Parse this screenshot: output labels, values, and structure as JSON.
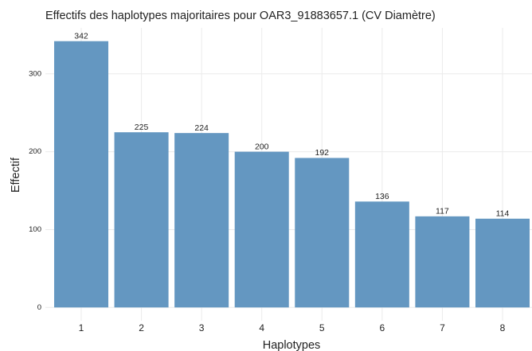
{
  "chart_data": {
    "type": "bar",
    "title": "Effectifs des haplotypes majoritaires pour OAR3_91883657.1 (CV Diamètre)",
    "x_label": "Haplotypes",
    "y_label": "Effectif",
    "categories": [
      "1",
      "2",
      "3",
      "4",
      "5",
      "6",
      "7",
      "8"
    ],
    "values": [
      342,
      225,
      224,
      200,
      192,
      136,
      117,
      114
    ],
    "color": "#6497c1",
    "ylim": [
      -17.1,
      359.1
    ],
    "yticks": [
      0,
      100,
      200,
      300
    ],
    "grid": true
  }
}
